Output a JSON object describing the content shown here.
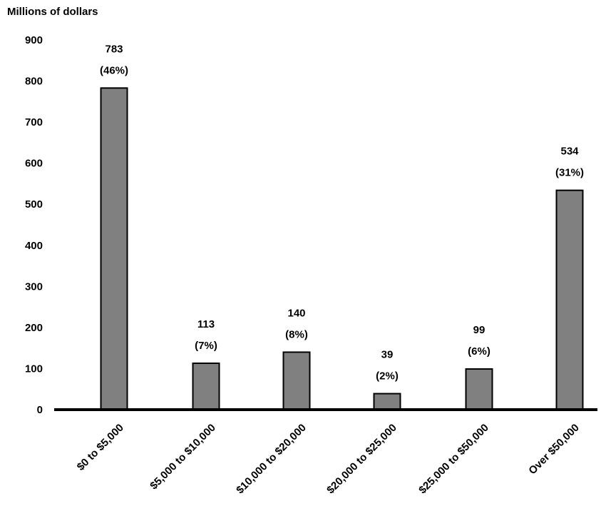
{
  "chart_data": {
    "type": "bar",
    "ylabel": "Millions of dollars",
    "categories": [
      "$0 to $5,000",
      "$5,000 to $10,000",
      "$10,000 to $20,000",
      "$20,000 to $25,000",
      "$25,000 to $50,000",
      "Over $50,000"
    ],
    "values": [
      783,
      113,
      140,
      39,
      99,
      534
    ],
    "value_labels": [
      "783",
      "113",
      "140",
      "39",
      "99",
      "534"
    ],
    "percent_labels": [
      "(46%)",
      "(7%)",
      "(8%)",
      "(2%)",
      "(6%)",
      "(31%)"
    ],
    "ylim": [
      0,
      900
    ],
    "yticks": [
      0,
      100,
      200,
      300,
      400,
      500,
      600,
      700,
      800,
      900
    ],
    "grid": false,
    "bar_color": "#808080",
    "bar_edge_color": "#000000"
  }
}
